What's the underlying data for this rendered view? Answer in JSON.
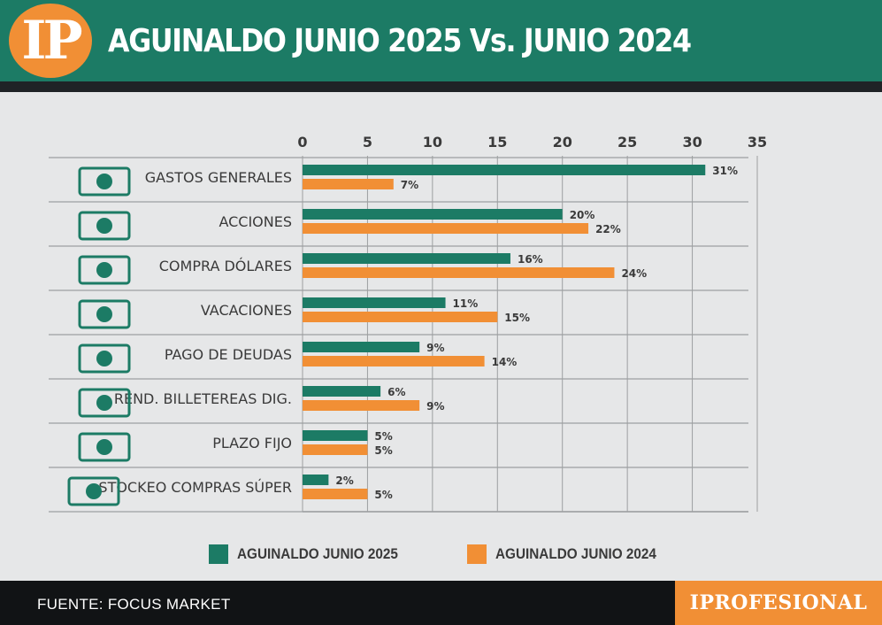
{
  "header": {
    "logo": "IP",
    "title": "AGUINALDO JUNIO 2025 Vs. JUNIO 2024"
  },
  "footer": {
    "source": "FUENTE: FOCUS MARKET",
    "brand": "IPROFESIONAL"
  },
  "colors": {
    "series_2025": "#1c7b65",
    "series_2024": "#f18f35",
    "grid": "#9d9fa1",
    "label_text": "#3a3a3a"
  },
  "chart_data": {
    "type": "bar",
    "orientation": "horizontal",
    "title": "AGUINALDO JUNIO 2025 Vs. JUNIO 2024",
    "xlim": [
      0,
      35
    ],
    "x_ticks": [
      0,
      5,
      10,
      15,
      20,
      25,
      30,
      35
    ],
    "categories": [
      {
        "label": "GASTOS GENERALES",
        "icon": "cash-hand-icon"
      },
      {
        "label": "ACCIONES",
        "icon": "stock-certificate-icon"
      },
      {
        "label": "COMPRA DÓLARES",
        "icon": "dollar-exchange-icon"
      },
      {
        "label": "VACACIONES",
        "icon": "palm-trees-icon"
      },
      {
        "label": "PAGO DE DEUDAS",
        "icon": "debt-ball-icon"
      },
      {
        "label": "REND. BILLETEREAS DIG.",
        "icon": "digital-wallet-icon"
      },
      {
        "label": "PLAZO FIJO",
        "icon": "time-money-icon"
      },
      {
        "label": "STOCKEO COMPRAS SÚPER",
        "icon": "groceries-icon"
      }
    ],
    "series": [
      {
        "name": "AGUINALDO JUNIO 2025",
        "values": [
          31,
          20,
          16,
          11,
          9,
          6,
          5,
          2
        ],
        "labels": [
          "31%",
          "20%",
          "16%",
          "11%",
          "9%",
          "6%",
          "5%",
          "2%"
        ]
      },
      {
        "name": "AGUINALDO JUNIO 2024",
        "values": [
          7,
          22,
          24,
          15,
          14,
          9,
          5,
          5
        ],
        "labels": [
          "7%",
          "22%",
          "24%",
          "15%",
          "14%",
          "9%",
          "5%",
          "5%"
        ]
      }
    ],
    "legend_position": "bottom",
    "grid": true
  }
}
